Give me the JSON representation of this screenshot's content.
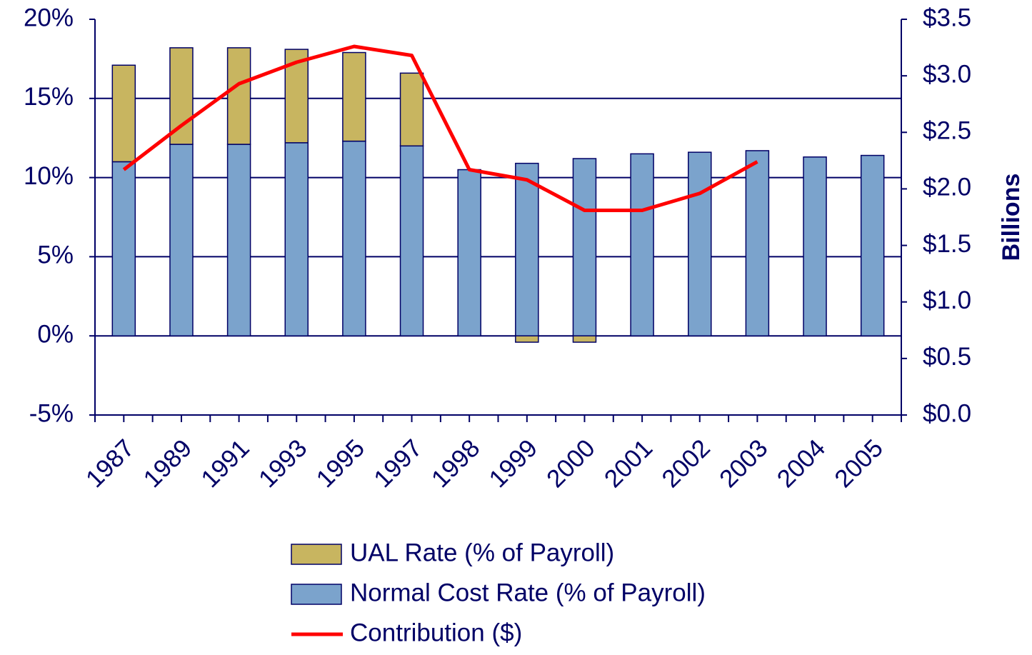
{
  "chart_data": {
    "type": "bar",
    "stacked": true,
    "categories": [
      "1987",
      "1989",
      "1991",
      "1993",
      "1995",
      "1997",
      "1998",
      "1999",
      "2000",
      "2001",
      "2002",
      "2003",
      "2004",
      "2005"
    ],
    "series": [
      {
        "name": "Normal Cost Rate (% of Payroll)",
        "color": "#7ba3cc",
        "values": [
          11.0,
          12.1,
          12.1,
          12.2,
          12.3,
          12.0,
          10.5,
          10.9,
          11.2,
          11.5,
          11.6,
          11.7,
          11.3,
          11.4
        ]
      },
      {
        "name": "UAL Rate (% of Payroll)",
        "color": "#c8b560",
        "values": [
          6.1,
          6.1,
          6.1,
          5.9,
          5.6,
          4.6,
          0,
          -0.4,
          -0.4,
          0,
          0,
          0,
          0,
          0
        ]
      },
      {
        "name": "Contribution ($)",
        "color": "#ff0000",
        "type": "line",
        "axis": "y2",
        "values": [
          2.17,
          2.56,
          2.93,
          3.12,
          3.26,
          3.18,
          2.17,
          2.08,
          1.81,
          1.81,
          1.96,
          2.24,
          null,
          null
        ]
      }
    ],
    "ylim": [
      -5,
      20
    ],
    "yticks": [
      {
        "value": -5,
        "label": "-5%"
      },
      {
        "value": 0,
        "label": "0%"
      },
      {
        "value": 5,
        "label": "5%"
      },
      {
        "value": 10,
        "label": "10%"
      },
      {
        "value": 15,
        "label": "15%"
      },
      {
        "value": 20,
        "label": "20%"
      }
    ],
    "y2lim": [
      0,
      3.5
    ],
    "y2ticks": [
      {
        "value": 0,
        "label": "$0.0"
      },
      {
        "value": 0.5,
        "label": "$0.5"
      },
      {
        "value": 1,
        "label": "$1.0"
      },
      {
        "value": 1.5,
        "label": "$1.5"
      },
      {
        "value": 2,
        "label": "$2.0"
      },
      {
        "value": 2.5,
        "label": "$2.5"
      },
      {
        "value": 3,
        "label": "$3.0"
      },
      {
        "value": 3.5,
        "label": "$3.5"
      }
    ],
    "y2_label": "Billions",
    "grid": true,
    "legend_order": [
      1,
      0,
      2
    ]
  }
}
